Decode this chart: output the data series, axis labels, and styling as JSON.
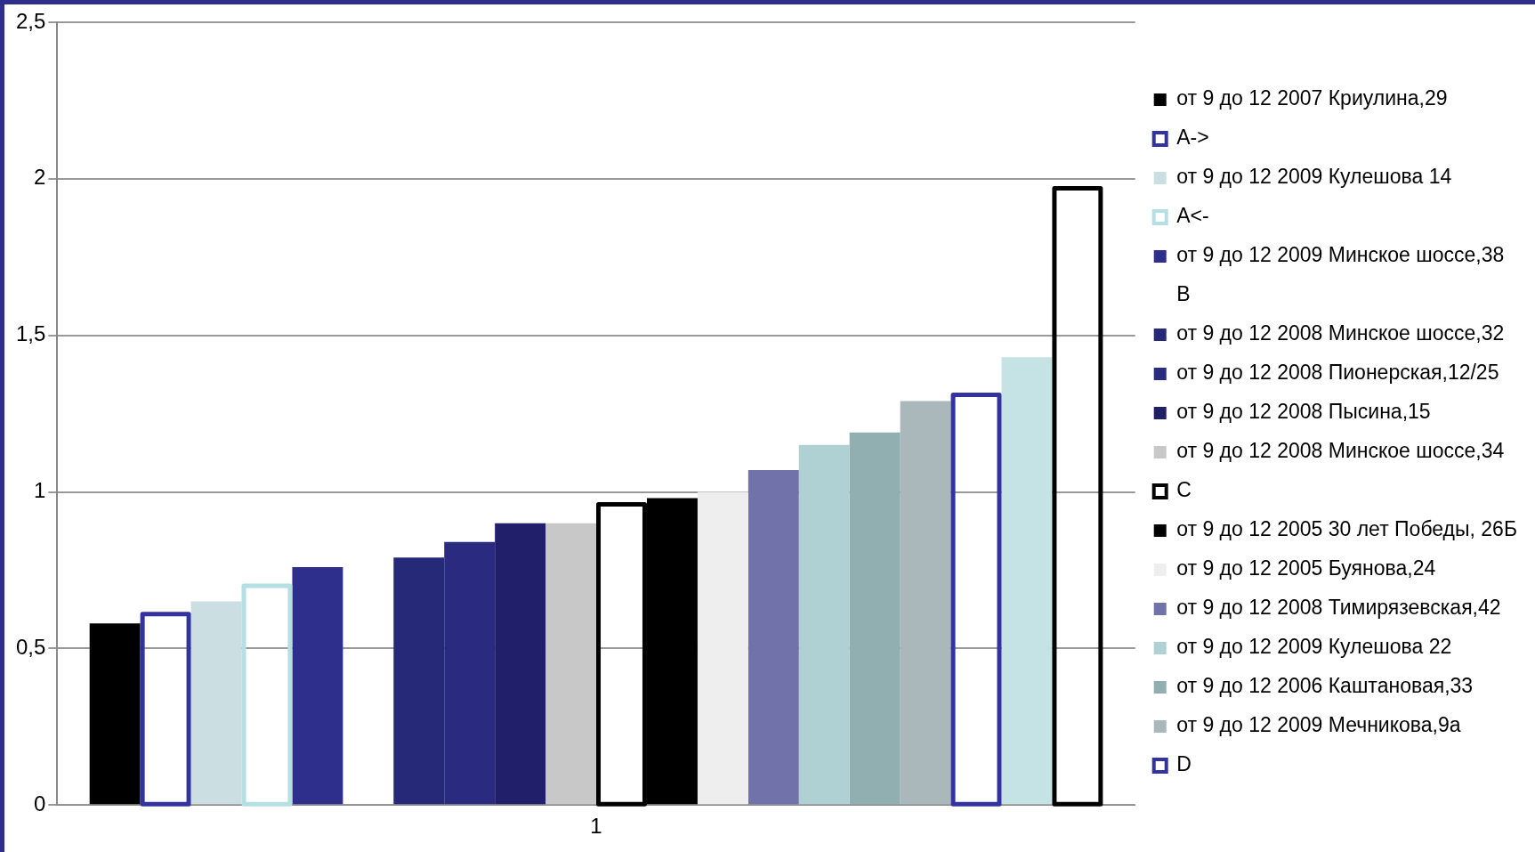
{
  "chart_data": {
    "type": "bar",
    "categories": [
      "1"
    ],
    "ylim": [
      0,
      2.5
    ],
    "yticks": [
      0,
      {
        "value": 0.5,
        "label": "0,5"
      },
      1,
      {
        "value": 1.5,
        "label": "1,5"
      },
      2,
      {
        "value": 2.5,
        "label": "2,5"
      }
    ],
    "grid": "y",
    "legend": "right",
    "series": [
      {
        "name": "от 9 до 12 2007 Криулина,29",
        "color": "#000000",
        "values": [
          0.58
        ]
      },
      {
        "name": "A->",
        "color": "#3333a0",
        "line_style": "solid",
        "values": [
          0.61
        ]
      },
      {
        "name": "от 9 до 12 2009 Кулешова 14",
        "color": "#cbdfe2",
        "values": [
          0.65
        ]
      },
      {
        "name": "A<-",
        "color": "#b5e0e3",
        "line_style": "solid",
        "values": [
          0.7
        ]
      },
      {
        "name": "от 9 до 12 2009 Минское шоссе,38",
        "color": "#2e2e8c",
        "values": [
          0.76
        ]
      },
      {
        "name": "B",
        "values": [
          null
        ]
      },
      {
        "name": "от 9 до 12 2008 Минское шоссе,32",
        "color": "#262878",
        "values": [
          0.79
        ]
      },
      {
        "name": "от 9 до 12 2008 Пионерская,12/25",
        "color": "#2a2a80",
        "values": [
          0.84
        ]
      },
      {
        "name": "от 9 до 12 2008 Пысина,15",
        "color": "#221f6a",
        "values": [
          0.9
        ]
      },
      {
        "name": "от 9 до 12 2008 Минское шоссе,34",
        "color": "#c8c8c8",
        "values": [
          0.9
        ]
      },
      {
        "name": "C",
        "color": "#000000",
        "line_style": "solid",
        "values": [
          0.96
        ]
      },
      {
        "name": "от 9 до 12 2005 30 лет Победы, 26Б",
        "color": "#000000",
        "values": [
          0.98
        ]
      },
      {
        "name": "от 9 до 12 2005 Буянова,24",
        "color": "#eeeeee",
        "values": [
          1.0
        ]
      },
      {
        "name": "от 9 до 12 2008 Тимирязевская,42",
        "color": "#7272aa",
        "values": [
          1.07
        ]
      },
      {
        "name": "от 9 до 12 2009 Кулешова 22",
        "color": "#afd1d4",
        "values": [
          1.15
        ]
      },
      {
        "name": "от 9 до 12 2006 Каштановая,33",
        "color": "#91afb1",
        "values": [
          1.19
        ]
      },
      {
        "name": "от 9 до 12 2009 Мечникова,9а",
        "color": "#aab8bc",
        "values": [
          1.29
        ]
      },
      {
        "name": "D",
        "color": "#3333a0",
        "line_style": "solid",
        "values": [
          1.31
        ]
      },
      {
        "color": "#c5e3e5",
        "values": [
          1.43
        ]
      },
      {
        "color": "#000000",
        "line_style": "solid",
        "values": [
          1.97
        ]
      }
    ]
  }
}
